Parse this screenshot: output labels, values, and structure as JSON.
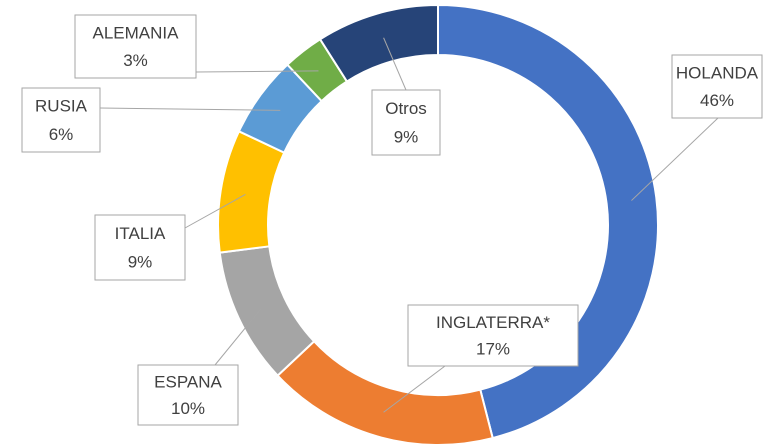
{
  "chart_data": {
    "type": "donut",
    "categories": [
      "HOLANDA",
      "INGLATERRA*",
      "ESPANA",
      "ITALIA",
      "RUSIA",
      "ALEMANIA",
      "Otros"
    ],
    "values": [
      46,
      17,
      10,
      9,
      6,
      3,
      9
    ],
    "value_labels": [
      "46%",
      "17%",
      "10%",
      "9%",
      "6%",
      "3%",
      "9%"
    ],
    "colors": [
      "#4472c4",
      "#ed7d31",
      "#a5a5a5",
      "#ffc000",
      "#5b9bd5",
      "#70ad47",
      "#264478"
    ]
  }
}
